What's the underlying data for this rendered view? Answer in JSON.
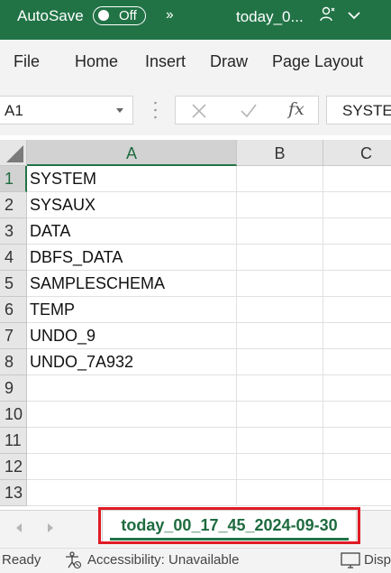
{
  "titlebar": {
    "autosave_label": "AutoSave",
    "autosave_state": "Off",
    "document_title": "today_0..."
  },
  "ribbon": {
    "tabs": [
      {
        "label": "File"
      },
      {
        "label": "Home"
      },
      {
        "label": "Insert"
      },
      {
        "label": "Draw"
      },
      {
        "label": "Page Layout"
      }
    ]
  },
  "formula_bar": {
    "name_box": "A1",
    "fx_label": "fx",
    "content": "SYSTEM"
  },
  "grid": {
    "columns": [
      "A",
      "B",
      "C"
    ],
    "rows": [
      {
        "num": "1",
        "a": "SYSTEM"
      },
      {
        "num": "2",
        "a": "SYSAUX"
      },
      {
        "num": "3",
        "a": "DATA"
      },
      {
        "num": "4",
        "a": "DBFS_DATA"
      },
      {
        "num": "5",
        "a": "SAMPLESCHEMA"
      },
      {
        "num": "6",
        "a": "TEMP"
      },
      {
        "num": "7",
        "a": "UNDO_9"
      },
      {
        "num": "8",
        "a": "UNDO_7A932"
      },
      {
        "num": "9",
        "a": ""
      },
      {
        "num": "10",
        "a": ""
      },
      {
        "num": "11",
        "a": ""
      },
      {
        "num": "12",
        "a": ""
      },
      {
        "num": "13",
        "a": ""
      }
    ]
  },
  "sheet_tabs": {
    "active": "today_00_17_45_2024-09-30"
  },
  "status_bar": {
    "ready": "Ready",
    "accessibility": "Accessibility: Unavailable",
    "display": "Disp"
  },
  "colors": {
    "excel_green": "#217346",
    "highlight_red": "#e01b24"
  }
}
